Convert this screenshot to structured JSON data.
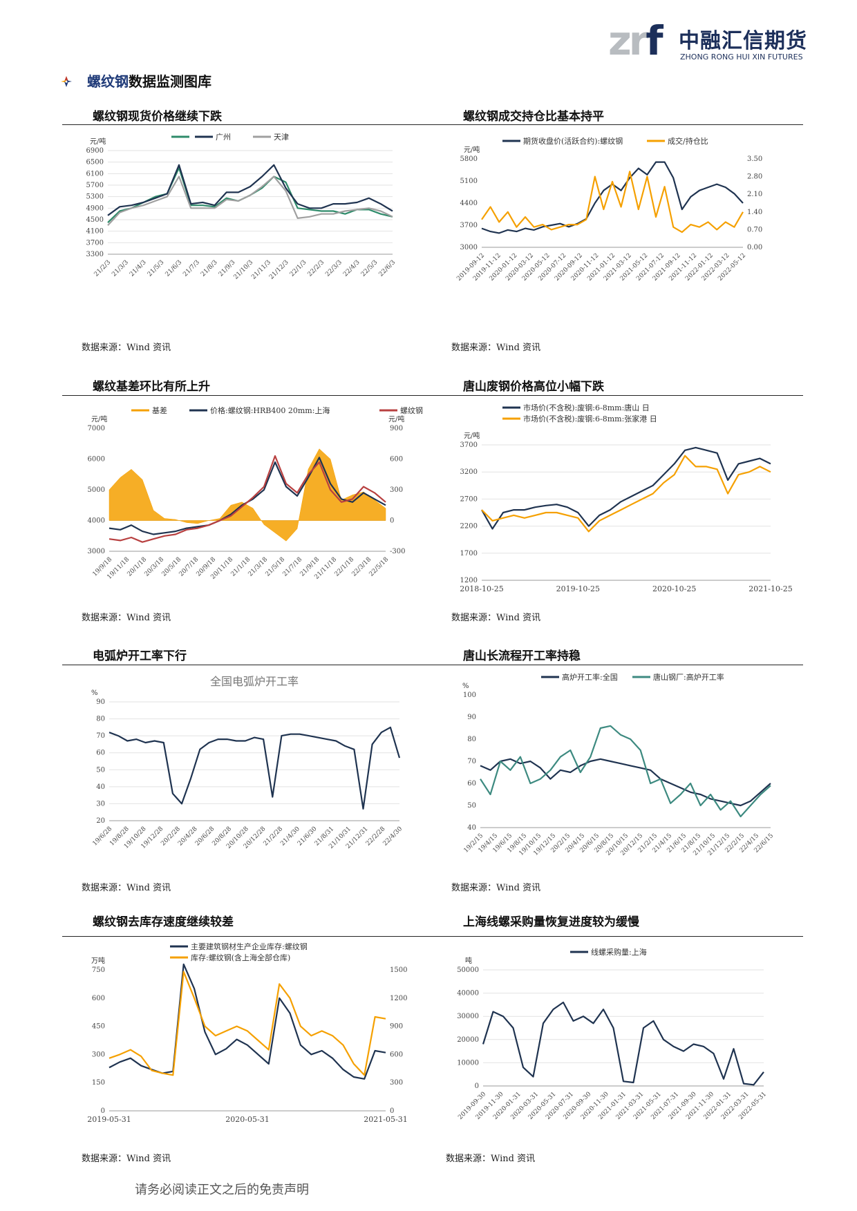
{
  "header": {
    "logo_mark_zr": "zr",
    "logo_mark_f": "f",
    "logo_cn": "中融汇信期货",
    "logo_en": "ZHONG RONG HUI XIN FUTURES",
    "logo_icon": "company-logo"
  },
  "section": {
    "icon": "arrow-bullet-icon",
    "title_highlight": "螺纹钢",
    "title_rest": "数据监测图库"
  },
  "footer": "请务必阅读正文之后的免责声明",
  "colors": {
    "navy": "#1f3350",
    "green": "#2e8b6a",
    "gray": "#a0a0a0",
    "orange": "#f5a000",
    "red": "#b84040",
    "teal": "#3d8a80"
  },
  "panels": [
    {
      "title": "螺纹钢现货价格继续下跌",
      "source": "数据来源：Wind 资讯"
    },
    {
      "title": "螺纹钢成交持仓比基本持平",
      "source": "数据来源：Wind 资讯"
    },
    {
      "title": "螺纹基差环比有所上升",
      "source": "数据来源：Wind 资讯"
    },
    {
      "title": "唐山废钢价格高位小幅下跌",
      "source": "数据来源：Wind 资讯"
    },
    {
      "title": "电弧炉开工率下行",
      "source": "数据来源：Wind 资讯"
    },
    {
      "title": "唐山长流程开工率持稳",
      "source": "数据来源：Wind 资讯"
    },
    {
      "title": "螺纹钢去库存速度继续较差",
      "source": "数据来源：Wind 资讯"
    },
    {
      "title": "上海线螺采购量恢复进度较为缓慢",
      "source": "数据来源：Wind 资讯"
    }
  ],
  "chart_data": [
    {
      "type": "line",
      "ylabel": "元/吨",
      "ylim": [
        3300,
        6900
      ],
      "yticks": [
        3300,
        3700,
        4100,
        4500,
        4900,
        5300,
        5700,
        6100,
        6500,
        6900
      ],
      "xticks": [
        "21/2/3",
        "21/3/3",
        "21/4/3",
        "21/5/3",
        "21/6/3",
        "21/7/3",
        "21/8/3",
        "21/9/3",
        "21/10/3",
        "21/11/3",
        "21/12/3",
        "22/1/3",
        "22/2/3",
        "22/3/3",
        "22/4/3",
        "22/5/3",
        "22/6/3"
      ],
      "legend_position": "top",
      "series": [
        {
          "name": "",
          "color": "#2e8b6a",
          "values": [
            4400,
            4800,
            4900,
            5100,
            5300,
            5400,
            6300,
            5000,
            5000,
            4950,
            5250,
            5150,
            5350,
            5600,
            6000,
            5800,
            4900,
            4850,
            4800,
            4800,
            4700,
            4850,
            4850,
            4700,
            4600
          ]
        },
        {
          "name": "广州",
          "color": "#1f3350",
          "values": [
            4650,
            4950,
            5000,
            5100,
            5250,
            5400,
            6400,
            5050,
            5100,
            5000,
            5450,
            5450,
            5650,
            6000,
            6400,
            5600,
            5050,
            4900,
            4900,
            5050,
            5050,
            5100,
            5250,
            5050,
            4800
          ]
        },
        {
          "name": "天津",
          "color": "#a0a0a0",
          "values": [
            4300,
            4750,
            4900,
            5000,
            5150,
            5300,
            6000,
            4900,
            4900,
            4900,
            5200,
            5150,
            5350,
            5650,
            6000,
            5500,
            4550,
            4600,
            4700,
            4700,
            4800,
            4850,
            4900,
            4800,
            4600
          ]
        }
      ]
    },
    {
      "type": "line",
      "ylabel": "元/吨",
      "ylim": [
        3000,
        5800
      ],
      "yticks": [
        3000,
        3700,
        4400,
        5100,
        5800
      ],
      "y2lim": [
        0,
        3.5
      ],
      "y2ticks": [
        "0.00",
        "0.70",
        "1.40",
        "2.10",
        "2.80",
        "3.50"
      ],
      "xticks": [
        "2019-09-12",
        "2019-11-12",
        "2020-01-12",
        "2020-03-12",
        "2020-05-12",
        "2020-07-12",
        "2020-09-12",
        "2020-11-12",
        "2021-01-12",
        "2021-03-12",
        "2021-05-12",
        "2021-07-12",
        "2021-09-12",
        "2021-11-12",
        "2022-01-12",
        "2022-03-12",
        "2022-05-12"
      ],
      "legend_position": "top",
      "series": [
        {
          "name": "期货收盘价(活跃合约):螺纹钢",
          "axis": "left",
          "color": "#1f3350",
          "values": [
            3600,
            3500,
            3450,
            3550,
            3500,
            3600,
            3550,
            3650,
            3700,
            3750,
            3650,
            3750,
            3900,
            4400,
            4800,
            5000,
            4800,
            5200,
            5500,
            5300,
            5700,
            5700,
            5200,
            4200,
            4600,
            4800,
            4900,
            5000,
            4900,
            4700,
            4400
          ]
        },
        {
          "name": "成交/持仓比",
          "axis": "right",
          "color": "#f5a000",
          "values": [
            1.1,
            1.6,
            1.0,
            1.4,
            0.8,
            1.2,
            0.8,
            0.9,
            0.7,
            0.8,
            0.9,
            0.9,
            1.1,
            2.8,
            1.5,
            2.6,
            1.6,
            3.0,
            1.5,
            2.8,
            1.2,
            2.4,
            0.8,
            0.6,
            0.9,
            0.8,
            1.0,
            0.7,
            1.0,
            0.8,
            1.4
          ]
        }
      ]
    },
    {
      "type": "line",
      "ylabel": "元/吨",
      "ylim": [
        3000,
        7000
      ],
      "yticks": [
        3000,
        4000,
        5000,
        6000,
        7000
      ],
      "y2label": "元/吨",
      "y2lim": [
        -300,
        900
      ],
      "y2ticks": [
        -300,
        0,
        300,
        600,
        900
      ],
      "xticks": [
        "19/9/18",
        "19/11/18",
        "20/1/18",
        "20/3/18",
        "20/5/18",
        "20/7/18",
        "20/9/18",
        "20/11/18",
        "21/1/18",
        "21/3/18",
        "21/5/18",
        "21/7/18",
        "21/9/18",
        "21/11/18",
        "22/1/18",
        "22/3/18",
        "22/5/18"
      ],
      "legend_position": "top",
      "series": [
        {
          "name": "基差",
          "axis": "right",
          "kind": "area",
          "color": "#f5a000",
          "values": [
            300,
            420,
            500,
            400,
            100,
            20,
            10,
            -20,
            -30,
            0,
            20,
            150,
            180,
            120,
            -40,
            -120,
            -200,
            -80,
            500,
            700,
            600,
            200,
            250,
            280,
            200,
            120
          ]
        },
        {
          "name": "价格:螺纹钢:HRB400 20mm:上海",
          "axis": "left",
          "color": "#1f3350",
          "values": [
            3750,
            3700,
            3850,
            3650,
            3550,
            3600,
            3650,
            3750,
            3800,
            3850,
            4000,
            4200,
            4500,
            4700,
            5000,
            5900,
            5100,
            4800,
            5400,
            6050,
            5200,
            4700,
            4600,
            4900,
            4700,
            4500
          ]
        },
        {
          "name": "螺纹钢",
          "axis": "left",
          "color": "#b84040",
          "values": [
            3400,
            3350,
            3450,
            3300,
            3400,
            3500,
            3550,
            3700,
            3750,
            3850,
            4000,
            4150,
            4450,
            4750,
            5100,
            6100,
            5200,
            4900,
            5500,
            5900,
            5000,
            4600,
            4700,
            5100,
            4900,
            4600
          ]
        }
      ]
    },
    {
      "type": "line",
      "ylabel": "元/吨",
      "ylim": [
        1200,
        3700
      ],
      "yticks": [
        1200,
        1700,
        2200,
        2700,
        3200,
        3700
      ],
      "xticks": [
        "2018-10-25",
        "2019-10-25",
        "2020-10-25",
        "2021-10-25"
      ],
      "legend_position": "top-left",
      "series": [
        {
          "name": "市场价(不含税):废钢:6-8mm:唐山 日",
          "color": "#1f3350",
          "values": [
            2500,
            2150,
            2450,
            2500,
            2500,
            2550,
            2580,
            2600,
            2550,
            2450,
            2200,
            2400,
            2500,
            2650,
            2750,
            2850,
            2950,
            3150,
            3350,
            3600,
            3650,
            3600,
            3550,
            3050,
            3350,
            3400,
            3450,
            3350
          ]
        },
        {
          "name": "市场价(不含税):废钢:6-8mm:张家港 日",
          "color": "#f5a000",
          "values": [
            2500,
            2300,
            2350,
            2400,
            2350,
            2400,
            2450,
            2450,
            2400,
            2350,
            2100,
            2300,
            2400,
            2500,
            2600,
            2700,
            2800,
            3000,
            3150,
            3500,
            3300,
            3300,
            3250,
            2800,
            3150,
            3200,
            3300,
            3200
          ]
        }
      ]
    },
    {
      "type": "line",
      "title": "全国电弧炉开工率",
      "ylabel": "%",
      "ylim": [
        20,
        90
      ],
      "yticks": [
        20,
        30,
        40,
        50,
        60,
        70,
        80,
        90
      ],
      "xticks": [
        "19/6/28",
        "19/8/28",
        "19/10/28",
        "19/12/28",
        "20/2/28",
        "20/4/28",
        "20/6/28",
        "20/8/28",
        "20/10/28",
        "20/12/28",
        "21/2/28",
        "21/4/30",
        "21/6/30",
        "21/8/31",
        "21/10/31",
        "21/12/31",
        "22/2/28",
        "22/4/30"
      ],
      "series": [
        {
          "name": "全国电弧炉开工率",
          "color": "#1f3350",
          "values": [
            72,
            70,
            67,
            68,
            66,
            67,
            66,
            36,
            30,
            45,
            62,
            66,
            68,
            68,
            67,
            67,
            69,
            68,
            34,
            70,
            71,
            71,
            70,
            69,
            68,
            67,
            64,
            62,
            27,
            65,
            72,
            75,
            57
          ]
        }
      ]
    },
    {
      "type": "line",
      "ylabel": "%",
      "ylim": [
        40,
        100
      ],
      "yticks": [
        40,
        50,
        60,
        70,
        80,
        90,
        100
      ],
      "xticks": [
        "19/2/15",
        "19/4/15",
        "19/6/15",
        "19/8/15",
        "19/10/15",
        "19/12/15",
        "20/2/15",
        "20/4/15",
        "20/6/15",
        "20/8/15",
        "20/10/15",
        "20/12/15",
        "21/2/15",
        "21/4/15",
        "21/6/15",
        "21/8/15",
        "21/10/15",
        "21/12/15",
        "22/2/15",
        "22/4/15",
        "22/6/15"
      ],
      "legend_position": "top",
      "series": [
        {
          "name": "高炉开工率:全国",
          "color": "#1f3350",
          "values": [
            68,
            66,
            70,
            71,
            69,
            70,
            67,
            62,
            66,
            65,
            68,
            70,
            71,
            70,
            69,
            68,
            67,
            66,
            62,
            60,
            58,
            56,
            55,
            53,
            52,
            51,
            50,
            52,
            56,
            60
          ]
        },
        {
          "name": "唐山钢厂:高炉开工率",
          "color": "#3d8a80",
          "values": [
            62,
            55,
            70,
            66,
            72,
            60,
            62,
            66,
            72,
            75,
            65,
            72,
            85,
            86,
            82,
            80,
            75,
            60,
            62,
            51,
            55,
            60,
            50,
            55,
            48,
            52,
            45,
            50,
            55,
            59
          ]
        }
      ]
    },
    {
      "type": "line",
      "ylabel": "万吨",
      "ylim": [
        0,
        750
      ],
      "yticks": [
        0,
        150,
        300,
        450,
        600,
        750
      ],
      "y2lim": [
        0,
        1500
      ],
      "y2ticks": [
        0,
        300,
        600,
        900,
        1200,
        1500
      ],
      "xticks": [
        "2019-05-31",
        "2020-05-31",
        "2021-05-31"
      ],
      "legend_position": "top",
      "series": [
        {
          "name": "主要建筑钢材生产企业库存:螺纹钢",
          "axis": "left",
          "color": "#1f3350",
          "values": [
            230,
            260,
            280,
            240,
            220,
            200,
            210,
            780,
            650,
            420,
            300,
            330,
            380,
            350,
            300,
            250,
            600,
            520,
            350,
            300,
            320,
            280,
            220,
            180,
            170,
            320,
            310
          ]
        },
        {
          "name": "库存:螺纹钢(含上海全部仓库)",
          "axis": "right",
          "color": "#f5a000",
          "values": [
            560,
            600,
            650,
            580,
            430,
            400,
            380,
            1480,
            1200,
            900,
            800,
            850,
            900,
            850,
            750,
            650,
            1350,
            1200,
            900,
            800,
            850,
            800,
            700,
            500,
            380,
            1000,
            980
          ]
        }
      ]
    },
    {
      "type": "line",
      "ylabel": "吨",
      "ylim": [
        0,
        50000
      ],
      "yticks": [
        0,
        10000,
        20000,
        30000,
        40000,
        50000
      ],
      "xticks": [
        "2019-09-30",
        "2019-11-30",
        "2020-01-31",
        "2020-03-31",
        "2020-05-31",
        "2020-07-31",
        "2020-09-30",
        "2020-11-30",
        "2021-01-31",
        "2021-03-31",
        "2021-05-31",
        "2021-07-31",
        "2021-09-30",
        "2021-11-30",
        "2022-01-31",
        "2022-03-31",
        "2022-05-31"
      ],
      "legend_position": "top",
      "series": [
        {
          "name": "线螺采购量:上海",
          "color": "#1f3350",
          "values": [
            18000,
            32000,
            30000,
            25000,
            8000,
            4000,
            27000,
            33000,
            36000,
            28000,
            30000,
            27000,
            33000,
            25000,
            2000,
            1500,
            25000,
            28000,
            20000,
            17000,
            15000,
            18000,
            17000,
            14000,
            3000,
            16000,
            1000,
            500,
            6000
          ]
        }
      ]
    }
  ]
}
